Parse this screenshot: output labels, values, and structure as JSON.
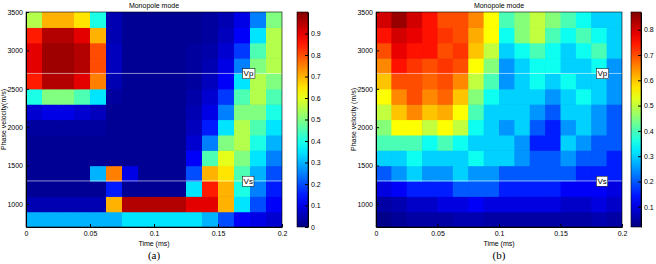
{
  "chart_data": [
    {
      "type": "heatmap",
      "title": "Monopole mode",
      "xlabel": "Time (ms)",
      "ylabel": "Phase velocity(m/s)",
      "caption": "(a)",
      "xlim": [
        0,
        0.2
      ],
      "ylim": [
        700,
        3500
      ],
      "xticks": [
        0,
        0.05,
        0.1,
        0.15,
        0.2
      ],
      "yticks": [
        1000,
        1500,
        2000,
        2500,
        3000,
        3500
      ],
      "x": [
        0,
        0.0125,
        0.025,
        0.0375,
        0.05,
        0.0625,
        0.075,
        0.0875,
        0.1,
        0.1125,
        0.125,
        0.1375,
        0.15,
        0.1625,
        0.175,
        0.1875,
        0.2
      ],
      "y": [
        700,
        900,
        1100,
        1300,
        1500,
        1700,
        1900,
        2100,
        2300,
        2500,
        2700,
        2900,
        3100,
        3300,
        3500
      ],
      "z": [
        [
          0.3,
          0.3,
          0.3,
          0.3,
          0.3,
          0.3,
          0.35,
          0.35,
          0.35,
          0.35,
          0.35,
          0.3,
          0.2,
          0.12,
          0.1,
          0.08
        ],
        [
          0.05,
          0.05,
          0.05,
          0.05,
          0.05,
          0.7,
          0.95,
          0.95,
          0.95,
          0.95,
          0.9,
          0.9,
          0.7,
          0.35,
          0.2,
          0.12
        ],
        [
          0.02,
          0.02,
          0.02,
          0.02,
          0.02,
          0.15,
          0.02,
          0.02,
          0.02,
          0.02,
          0.35,
          0.85,
          0.7,
          0.4,
          0.25,
          0.15
        ],
        [
          0.02,
          0.02,
          0.02,
          0.02,
          0.3,
          0.75,
          0.1,
          0.02,
          0.02,
          0.02,
          0.2,
          0.7,
          0.65,
          0.45,
          0.3,
          0.2
        ],
        [
          0.02,
          0.02,
          0.02,
          0.02,
          0.02,
          0.02,
          0.02,
          0.02,
          0.02,
          0.02,
          0.12,
          0.45,
          0.6,
          0.5,
          0.35,
          0.25
        ],
        [
          0.02,
          0.02,
          0.02,
          0.02,
          0.02,
          0.02,
          0.02,
          0.02,
          0.02,
          0.02,
          0.08,
          0.25,
          0.5,
          0.55,
          0.4,
          0.3
        ],
        [
          0.03,
          0.03,
          0.03,
          0.03,
          0.03,
          0.02,
          0.02,
          0.02,
          0.02,
          0.02,
          0.06,
          0.15,
          0.35,
          0.55,
          0.45,
          0.35
        ],
        [
          0.08,
          0.1,
          0.1,
          0.08,
          0.06,
          0.02,
          0.02,
          0.02,
          0.02,
          0.02,
          0.05,
          0.1,
          0.25,
          0.5,
          0.5,
          0.4
        ],
        [
          0.4,
          0.5,
          0.5,
          0.45,
          0.35,
          0.03,
          0.02,
          0.02,
          0.02,
          0.02,
          0.04,
          0.08,
          0.18,
          0.45,
          0.55,
          0.45
        ],
        [
          0.85,
          0.95,
          0.95,
          0.9,
          0.75,
          0.05,
          0.02,
          0.02,
          0.02,
          0.02,
          0.03,
          0.06,
          0.12,
          0.35,
          0.55,
          0.5
        ],
        [
          0.9,
          0.97,
          0.97,
          0.95,
          0.8,
          0.06,
          0.02,
          0.02,
          0.02,
          0.02,
          0.03,
          0.05,
          0.1,
          0.25,
          0.5,
          0.55
        ],
        [
          0.9,
          0.97,
          0.97,
          0.95,
          0.8,
          0.06,
          0.02,
          0.02,
          0.02,
          0.02,
          0.03,
          0.04,
          0.08,
          0.18,
          0.45,
          0.55
        ],
        [
          0.85,
          0.95,
          0.95,
          0.9,
          0.7,
          0.05,
          0.02,
          0.02,
          0.02,
          0.02,
          0.02,
          0.03,
          0.06,
          0.12,
          0.35,
          0.55
        ],
        [
          0.55,
          0.7,
          0.7,
          0.65,
          0.4,
          0.05,
          0.02,
          0.02,
          0.02,
          0.02,
          0.02,
          0.03,
          0.05,
          0.1,
          0.25,
          0.5
        ]
      ],
      "colorbar": {
        "range": [
          0,
          1
        ],
        "ticks": [
          0,
          0.1,
          0.2,
          0.3,
          0.4,
          0.5,
          0.6,
          0.7,
          0.8,
          0.9
        ]
      },
      "annotations": [
        {
          "text": "Vp",
          "x": 0.17,
          "y": 2700
        },
        {
          "text": "Vs",
          "x": 0.17,
          "y": 1300
        }
      ]
    },
    {
      "type": "heatmap",
      "title": "Monopole mode",
      "xlabel": "Time (ms)",
      "ylabel": "Phase velocity (m/s)",
      "caption": "(b)",
      "xlim": [
        0,
        0.2
      ],
      "ylim": [
        700,
        3500
      ],
      "xticks": [
        0,
        0.05,
        0.1,
        0.15,
        0.2
      ],
      "yticks": [
        1000,
        1500,
        2000,
        2500,
        3000,
        3500
      ],
      "x": [
        0,
        0.0125,
        0.025,
        0.0375,
        0.05,
        0.0625,
        0.075,
        0.0875,
        0.1,
        0.1125,
        0.125,
        0.1375,
        0.15,
        0.1625,
        0.175,
        0.1875,
        0.2
      ],
      "y": [
        700,
        900,
        1100,
        1300,
        1500,
        1700,
        1900,
        2100,
        2300,
        2500,
        2700,
        2900,
        3100,
        3300,
        3500
      ],
      "z": [
        [
          0.03,
          0.04,
          0.05,
          0.05,
          0.05,
          0.06,
          0.06,
          0.05,
          0.05,
          0.05,
          0.05,
          0.05,
          0.05,
          0.05,
          0.06,
          0.05
        ],
        [
          0.05,
          0.06,
          0.08,
          0.08,
          0.1,
          0.1,
          0.12,
          0.1,
          0.1,
          0.1,
          0.1,
          0.1,
          0.08,
          0.08,
          0.1,
          0.08
        ],
        [
          0.1,
          0.12,
          0.15,
          0.15,
          0.15,
          0.2,
          0.2,
          0.2,
          0.15,
          0.15,
          0.15,
          0.15,
          0.12,
          0.12,
          0.12,
          0.1
        ],
        [
          0.2,
          0.25,
          0.3,
          0.25,
          0.25,
          0.3,
          0.25,
          0.25,
          0.2,
          0.2,
          0.2,
          0.2,
          0.2,
          0.15,
          0.15,
          0.15
        ],
        [
          0.3,
          0.3,
          0.35,
          0.3,
          0.3,
          0.3,
          0.35,
          0.3,
          0.3,
          0.25,
          0.2,
          0.2,
          0.25,
          0.2,
          0.2,
          0.15
        ],
        [
          0.4,
          0.4,
          0.4,
          0.35,
          0.4,
          0.35,
          0.3,
          0.3,
          0.3,
          0.25,
          0.15,
          0.15,
          0.3,
          0.25,
          0.2,
          0.2
        ],
        [
          0.45,
          0.55,
          0.55,
          0.5,
          0.55,
          0.5,
          0.35,
          0.3,
          0.25,
          0.3,
          0.2,
          0.15,
          0.25,
          0.3,
          0.25,
          0.2
        ],
        [
          0.5,
          0.6,
          0.65,
          0.6,
          0.62,
          0.55,
          0.4,
          0.3,
          0.3,
          0.3,
          0.25,
          0.2,
          0.3,
          0.3,
          0.25,
          0.2
        ],
        [
          0.55,
          0.65,
          0.7,
          0.65,
          0.68,
          0.6,
          0.45,
          0.35,
          0.3,
          0.3,
          0.3,
          0.25,
          0.3,
          0.35,
          0.3,
          0.25
        ],
        [
          0.6,
          0.7,
          0.7,
          0.68,
          0.7,
          0.65,
          0.5,
          0.4,
          0.25,
          0.3,
          0.35,
          0.3,
          0.35,
          0.3,
          0.3,
          0.25
        ],
        [
          0.65,
          0.75,
          0.72,
          0.7,
          0.72,
          0.7,
          0.55,
          0.45,
          0.25,
          0.3,
          0.35,
          0.35,
          0.3,
          0.3,
          0.35,
          0.25
        ],
        [
          0.7,
          0.78,
          0.75,
          0.75,
          0.7,
          0.72,
          0.6,
          0.5,
          0.3,
          0.35,
          0.4,
          0.35,
          0.3,
          0.35,
          0.4,
          0.3
        ],
        [
          0.75,
          0.8,
          0.78,
          0.75,
          0.72,
          0.7,
          0.62,
          0.55,
          0.35,
          0.45,
          0.5,
          0.4,
          0.35,
          0.4,
          0.35,
          0.3
        ],
        [
          0.8,
          0.85,
          0.8,
          0.75,
          0.7,
          0.7,
          0.65,
          0.55,
          0.4,
          0.45,
          0.5,
          0.45,
          0.4,
          0.35,
          0.3,
          0.3
        ]
      ],
      "colorbar": {
        "range": [
          0.02,
          0.87
        ],
        "ticks": [
          0.1,
          0.2,
          0.3,
          0.4,
          0.5,
          0.6,
          0.7,
          0.8
        ]
      },
      "annotations": [
        {
          "text": "Vp",
          "x": 0.18,
          "y": 2700
        },
        {
          "text": "Vs",
          "x": 0.18,
          "y": 1300
        }
      ]
    }
  ]
}
